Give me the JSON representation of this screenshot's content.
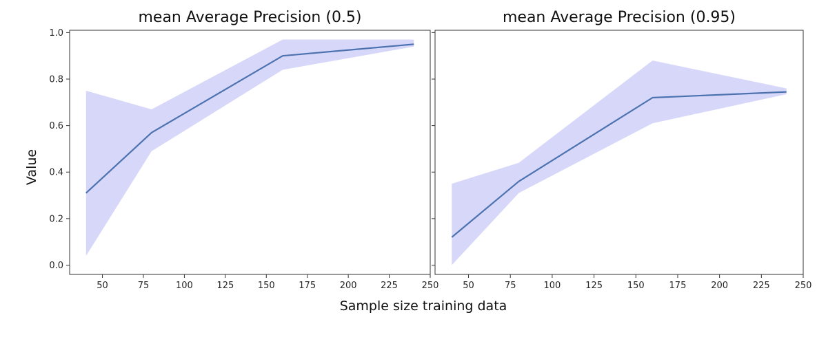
{
  "figure": {
    "xlabel": "Sample size training data",
    "ylabel": "Value"
  },
  "chart_data": [
    {
      "type": "line",
      "title": "mean Average Precision (0.5)",
      "x": [
        40,
        80,
        160,
        240
      ],
      "y": [
        0.31,
        0.57,
        0.9,
        0.95
      ],
      "band_low": [
        0.04,
        0.49,
        0.84,
        0.94
      ],
      "band_high": [
        0.75,
        0.67,
        0.97,
        0.97
      ],
      "xlim": [
        30,
        250
      ],
      "ylim": [
        -0.04,
        1.01
      ],
      "xticks": [
        50,
        75,
        100,
        125,
        150,
        175,
        200,
        225,
        250
      ],
      "yticks": [
        0.0,
        0.2,
        0.4,
        0.6,
        0.8,
        1.0
      ],
      "ytick_labels": [
        "0.0",
        "0.2",
        "0.4",
        "0.6",
        "0.8",
        "1.0"
      ],
      "show_yticklabels": true,
      "grid": false,
      "line_color": "#4c72b0",
      "band_color": "#c9c9f7"
    },
    {
      "type": "line",
      "title": "mean Average Precision (0.95)",
      "x": [
        40,
        80,
        160,
        240
      ],
      "y": [
        0.12,
        0.36,
        0.72,
        0.745
      ],
      "band_low": [
        0.0,
        0.31,
        0.61,
        0.735
      ],
      "band_high": [
        0.35,
        0.44,
        0.88,
        0.76
      ],
      "xlim": [
        30,
        250
      ],
      "ylim": [
        -0.04,
        1.01
      ],
      "xticks": [
        50,
        75,
        100,
        125,
        150,
        175,
        200,
        225,
        250
      ],
      "yticks": [
        0.0,
        0.2,
        0.4,
        0.6,
        0.8,
        1.0
      ],
      "ytick_labels": [
        "0.0",
        "0.2",
        "0.4",
        "0.6",
        "0.8",
        "1.0"
      ],
      "show_yticklabels": false,
      "grid": false,
      "line_color": "#4c72b0",
      "band_color": "#c9c9f7"
    }
  ]
}
